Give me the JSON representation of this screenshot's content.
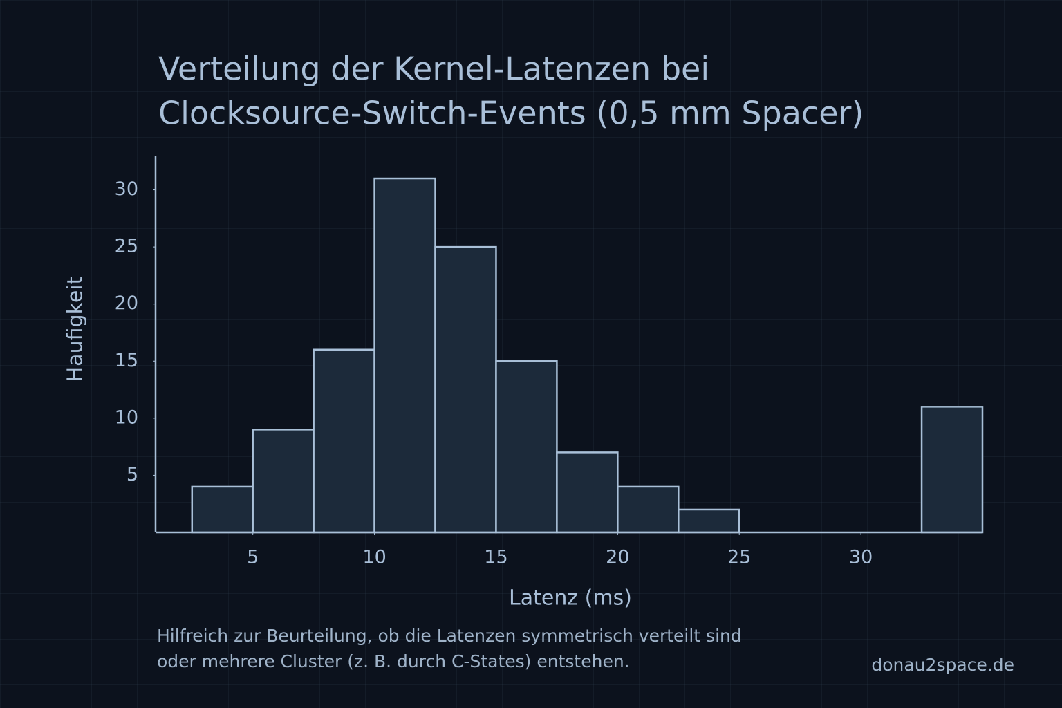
{
  "chart_data": {
    "type": "histogram",
    "title": [
      "Verteilung der Kernel-Latenzen bei",
      "Clocksource-Switch-Events (0,5 mm Spacer)"
    ],
    "x_label": "Latenz (ms)",
    "y_label": "Haufigkeit",
    "bins": [
      2.5,
      5,
      7.5,
      10,
      12.5,
      15,
      17.5,
      20,
      22.5,
      25,
      27.5,
      30,
      32.5,
      35
    ],
    "values": [
      4,
      9,
      16,
      31,
      25,
      15,
      7,
      4,
      2,
      0,
      0,
      0,
      11
    ],
    "color": "#1c2a3a",
    "edge_color": "#a9c0d8",
    "xlim": [
      1,
      35
    ],
    "xticks": [
      5,
      10,
      15,
      20,
      25,
      30
    ],
    "ylim": [
      0,
      33
    ],
    "yticks": [
      5,
      10,
      15,
      20,
      25,
      30
    ],
    "note": [
      "Hilfreich zur Beurteilung, ob die Latenzen symmetrisch verteilt sind",
      "oder mehrere Cluster (z. B. durch C-States) entstehen."
    ],
    "source": "donau2space.de"
  }
}
